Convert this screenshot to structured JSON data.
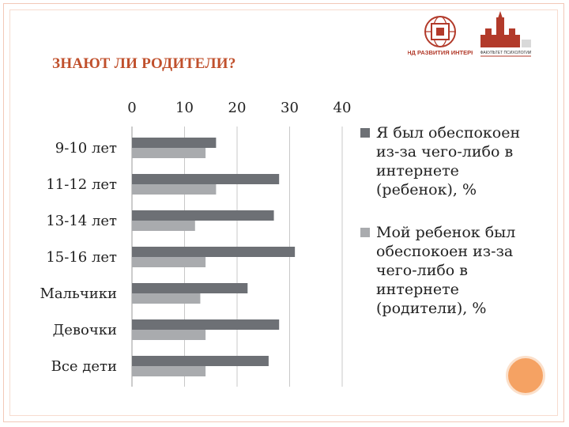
{
  "slide": {
    "title": "ЗНАЮТ ЛИ РОДИТЕЛИ?",
    "logo1_text": "ФОНД РАЗВИТИЯ ИНТЕРНЕТ",
    "logo2_text": "ФАКУЛЬТЕТ ПСИХОЛОГИИ"
  },
  "colors": {
    "title": "#c0502c",
    "series_child": "#6d7075",
    "series_parent": "#a9abae",
    "accent_circle": "#f5a263"
  },
  "chart_data": {
    "type": "bar",
    "orientation": "horizontal",
    "categories": [
      "9-10 лет",
      "11-12 лет",
      "13-14 лет",
      "15-16 лет",
      "Мальчики",
      "Девочки",
      "Все дети"
    ],
    "series": [
      {
        "name": "Я был обеспокоен из-за чего-либо в интернете (ребенок), %",
        "values": [
          16,
          28,
          27,
          31,
          22,
          28,
          26
        ]
      },
      {
        "name": "Мой ребенок был обеспокоен из-за чего-либо в интернете (родители), %",
        "values": [
          14,
          16,
          12,
          14,
          13,
          14,
          14
        ]
      }
    ],
    "xlim": [
      0,
      40
    ],
    "xticks": [
      "0",
      "10",
      "20",
      "30",
      "40"
    ],
    "axis_position": "top",
    "grid": true,
    "legend_position": "right"
  }
}
